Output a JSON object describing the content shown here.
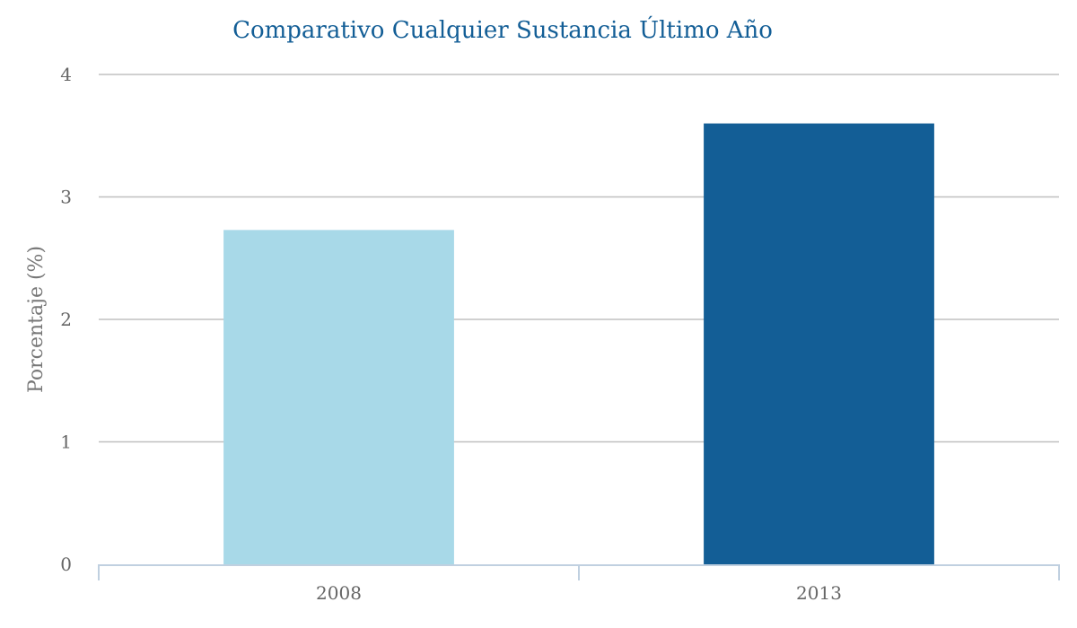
{
  "colors": {
    "title": "#135e96",
    "grid": "#c0c0c0",
    "axis": "#c0d0e0",
    "bar_2008": "#a8d9e8",
    "bar_2013": "#135e96"
  },
  "chart_data": {
    "type": "bar",
    "title": "Comparativo Cualquier Sustancia Último Año",
    "xlabel": "",
    "ylabel": "Porcentaje (%)",
    "categories": [
      "2008",
      "2013"
    ],
    "values": [
      2.73,
      3.6
    ],
    "bar_colors": [
      "#a8d9e8",
      "#135e96"
    ],
    "ylim": [
      0,
      4
    ],
    "yticks": [
      "0",
      "1",
      "2",
      "3",
      "4"
    ],
    "grid": true,
    "legend": "none"
  }
}
